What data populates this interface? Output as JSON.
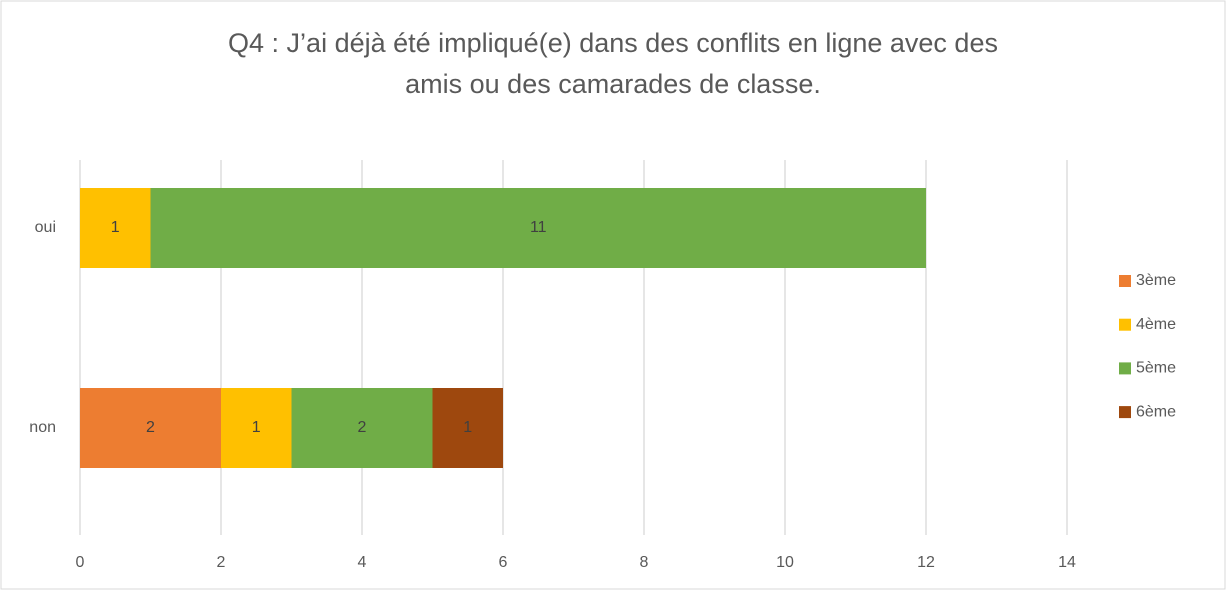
{
  "chart_data": {
    "type": "stacked-bar-horizontal",
    "title": [
      "Q4 : J’ai déjà été impliqué(e) dans des conflits en ligne avec des",
      "amis ou des camarades de classe."
    ],
    "categories": [
      "oui",
      "non"
    ],
    "series": [
      {
        "name": "3ème",
        "color": "#ED7D31",
        "values": [
          null,
          2
        ]
      },
      {
        "name": "4ème",
        "color": "#FFC000",
        "values": [
          1,
          1
        ]
      },
      {
        "name": "5ème",
        "color": "#70AD47",
        "values": [
          11,
          2
        ]
      },
      {
        "name": "6ème",
        "color": "#9E480E",
        "values": [
          null,
          1
        ]
      }
    ],
    "xlim": [
      0,
      14
    ],
    "xticks": [
      0,
      2,
      4,
      6,
      8,
      10,
      12,
      14
    ],
    "grid": true,
    "legend": "right"
  }
}
